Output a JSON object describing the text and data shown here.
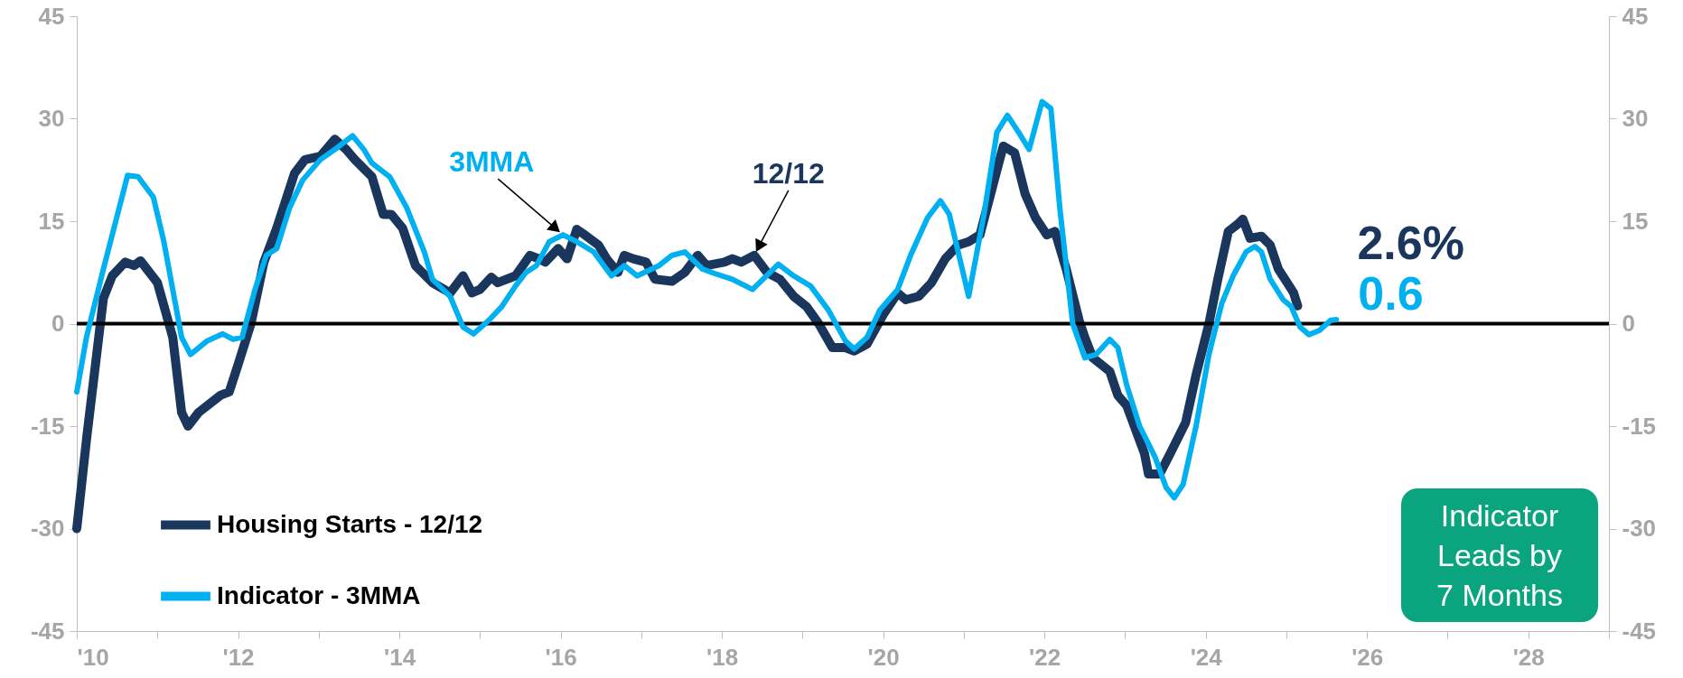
{
  "chart_data": {
    "type": "line",
    "xlim": [
      2010,
      2029
    ],
    "xticks": [
      {
        "value": 2010,
        "label": "'10"
      },
      {
        "value": 2011,
        "label": null
      },
      {
        "value": 2012,
        "label": "'12"
      },
      {
        "value": 2013,
        "label": null
      },
      {
        "value": 2014,
        "label": "'14"
      },
      {
        "value": 2015,
        "label": null
      },
      {
        "value": 2016,
        "label": "'16"
      },
      {
        "value": 2017,
        "label": null
      },
      {
        "value": 2018,
        "label": "'18"
      },
      {
        "value": 2019,
        "label": null
      },
      {
        "value": 2020,
        "label": "'20"
      },
      {
        "value": 2021,
        "label": null
      },
      {
        "value": 2022,
        "label": "'22"
      },
      {
        "value": 2023,
        "label": null
      },
      {
        "value": 2024,
        "label": "'24"
      },
      {
        "value": 2025,
        "label": null
      },
      {
        "value": 2026,
        "label": "'26"
      },
      {
        "value": 2027,
        "label": null
      },
      {
        "value": 2028,
        "label": "'28"
      },
      {
        "value": 2029,
        "label": null
      }
    ],
    "ylim": [
      -45,
      45
    ],
    "yticks": [
      -45,
      -30,
      -15,
      0,
      15,
      30,
      45
    ],
    "y2lim": [
      -45,
      45
    ],
    "y2ticks": [
      -45,
      -30,
      -15,
      0,
      15,
      30,
      45
    ],
    "grid": false,
    "legend": "bottom left",
    "ref_lines": [
      {
        "axis": "y",
        "value": 0,
        "color": "#000000"
      }
    ],
    "annotations": [
      {
        "text": "3MMA",
        "x": 2016.03,
        "y": 13
      },
      {
        "text": "12/12",
        "x": 2018.4,
        "y": 10
      },
      {
        "text": "2.6%",
        "x": 2025.14,
        "y": 2.6
      },
      {
        "text": "0.6",
        "x": 2025.62,
        "y": 0.6
      },
      "Indicator Leads by 7 Months"
    ],
    "series": [
      {
        "name": "Housing Starts - 12/12",
        "color": "#1b365d",
        "x": [
          2010.0,
          2010.12,
          2010.33,
          2010.44,
          2010.6,
          2010.71,
          2010.79,
          2011.0,
          2011.19,
          2011.3,
          2011.38,
          2011.51,
          2011.78,
          2011.89,
          2012.0,
          2012.16,
          2012.32,
          2012.48,
          2012.7,
          2012.83,
          2013.02,
          2013.2,
          2013.34,
          2013.45,
          2013.66,
          2013.8,
          2013.9,
          2014.04,
          2014.2,
          2014.41,
          2014.63,
          2014.79,
          2014.9,
          2015.0,
          2015.14,
          2015.22,
          2015.44,
          2015.62,
          2015.73,
          2015.81,
          2015.97,
          2016.08,
          2016.2,
          2016.3,
          2016.47,
          2016.57,
          2016.71,
          2016.79,
          2016.9,
          2017.06,
          2017.17,
          2017.38,
          2017.54,
          2017.7,
          2017.81,
          2018.03,
          2018.13,
          2018.24,
          2018.4,
          2018.56,
          2018.72,
          2018.89,
          2019.05,
          2019.2,
          2019.37,
          2019.53,
          2019.64,
          2019.8,
          2020.01,
          2020.18,
          2020.28,
          2020.44,
          2020.6,
          2020.77,
          2020.93,
          2021.06,
          2021.2,
          2021.4,
          2021.49,
          2021.63,
          2021.76,
          2021.89,
          2022.03,
          2022.13,
          2022.27,
          2022.43,
          2022.5,
          2022.6,
          2022.81,
          2022.91,
          2023.02,
          2023.24,
          2023.29,
          2023.43,
          2023.56,
          2023.75,
          2023.88,
          2024.04,
          2024.15,
          2024.28,
          2024.39,
          2024.46,
          2024.55,
          2024.69,
          2024.8,
          2024.9,
          2025.01,
          2025.09,
          2025.14
        ],
        "values": [
          -30,
          -17,
          3.7,
          7,
          9,
          8.5,
          9.2,
          6,
          -2,
          -13,
          -15,
          -13,
          -10.5,
          -10,
          -6,
          0,
          9,
          14,
          22,
          24,
          24.5,
          27,
          25.5,
          24,
          21.5,
          16,
          16,
          14,
          8.5,
          6,
          4.5,
          7,
          4.5,
          5,
          6.8,
          6,
          7,
          10,
          9.5,
          9,
          11,
          9.5,
          13.8,
          13,
          11.5,
          9.5,
          7.5,
          10,
          9.5,
          9,
          6.5,
          6.2,
          7.5,
          10,
          8.5,
          9,
          9.5,
          9,
          10,
          7.5,
          6.5,
          4,
          2.5,
          0,
          -3.5,
          -3.5,
          -4,
          -3,
          1.5,
          4.5,
          3.5,
          4,
          6,
          9.5,
          11.5,
          12,
          13,
          22,
          26,
          25,
          19,
          15.5,
          13,
          13.5,
          8,
          0.5,
          -2,
          -5,
          -7,
          -10.5,
          -12,
          -19,
          -22,
          -22,
          -19,
          -14.5,
          -7.5,
          0,
          6.5,
          13.5,
          14.5,
          15.3,
          12.5,
          12.8,
          11.5,
          8,
          6,
          4.5,
          2.6
        ]
      },
      {
        "name": "Indicator - 3MMA",
        "color": "#00b0f0",
        "x": [
          2010.0,
          2010.12,
          2010.33,
          2010.63,
          2010.76,
          2010.95,
          2011.08,
          2011.3,
          2011.41,
          2011.62,
          2011.81,
          2011.94,
          2012.05,
          2012.21,
          2012.35,
          2012.48,
          2012.64,
          2012.8,
          2013.02,
          2013.2,
          2013.42,
          2013.56,
          2013.66,
          2013.88,
          2014.09,
          2014.31,
          2014.41,
          2014.63,
          2014.79,
          2014.92,
          2015.11,
          2015.27,
          2015.44,
          2015.57,
          2015.7,
          2015.86,
          2016.03,
          2016.2,
          2016.41,
          2016.63,
          2016.79,
          2016.95,
          2017.22,
          2017.38,
          2017.54,
          2017.76,
          2017.92,
          2018.13,
          2018.38,
          2018.7,
          2018.89,
          2019.1,
          2019.32,
          2019.53,
          2019.64,
          2019.8,
          2019.96,
          2020.18,
          2020.34,
          2020.55,
          2020.71,
          2020.82,
          2021.06,
          2021.25,
          2021.41,
          2021.54,
          2021.68,
          2021.81,
          2021.97,
          2022.08,
          2022.19,
          2022.35,
          2022.5,
          2022.64,
          2022.81,
          2022.91,
          2023.02,
          2023.18,
          2023.37,
          2023.51,
          2023.61,
          2023.72,
          2023.88,
          2024.04,
          2024.2,
          2024.34,
          2024.5,
          2024.61,
          2024.69,
          2024.8,
          2024.96,
          2025.06,
          2025.17,
          2025.28,
          2025.41,
          2025.55,
          2025.62
        ],
        "values": [
          -10,
          -2,
          8,
          21.7,
          21.5,
          18.5,
          12,
          -2,
          -4.5,
          -2.5,
          -1.5,
          -2.3,
          -2,
          5,
          10,
          11,
          17,
          21,
          24,
          25.5,
          27.5,
          25.5,
          23.5,
          21.5,
          17,
          10.5,
          6.5,
          4,
          -0.5,
          -1.5,
          0.5,
          2.5,
          5.5,
          7.5,
          8.5,
          12,
          13,
          12,
          10.5,
          7,
          8.5,
          7,
          8.5,
          10,
          10.5,
          8,
          7.3,
          6.5,
          5,
          8.7,
          7,
          5.5,
          2,
          -2.5,
          -3.7,
          -2,
          2,
          5,
          10,
          15.5,
          18,
          16,
          4,
          16,
          28,
          30.5,
          28,
          25.5,
          32.5,
          31.5,
          17,
          0,
          -5,
          -4.5,
          -2.3,
          -3.5,
          -9,
          -15,
          -19.5,
          -24,
          -25.5,
          -23.5,
          -15,
          -4.5,
          3,
          7,
          10.5,
          11.3,
          10.5,
          6.5,
          3.5,
          2.5,
          -0.5,
          -1.6,
          -1,
          0.5,
          0.6
        ]
      }
    ]
  }
}
